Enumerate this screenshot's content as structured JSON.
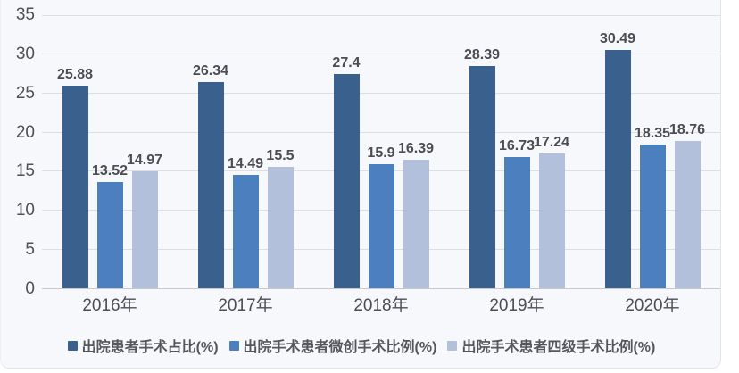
{
  "page": {
    "background": "#ffffff"
  },
  "card": {
    "background": "#f7f8fb",
    "border_color": "#e2e5ea"
  },
  "colors": {
    "grid_line": "#dcdee3",
    "axis_line": "#c6c9ce",
    "tick_text": "#4e5056",
    "value_label_text": "#4b4d53",
    "legend_text": "#54565c"
  },
  "chart_data": {
    "type": "bar",
    "title": "",
    "categories": [
      "2016年",
      "2017年",
      "2018年",
      "2019年",
      "2020年"
    ],
    "series": [
      {
        "name": "出院患者手术占比(%)",
        "color": "#3a618e",
        "values": [
          25.88,
          26.34,
          27.4,
          28.39,
          30.49
        ],
        "value_labels": [
          "25.88",
          "26.34",
          "27.4",
          "28.39",
          "30.49"
        ]
      },
      {
        "name": "出院手术患者微创手术比例(%)",
        "color": "#4c7fbd",
        "values": [
          13.52,
          14.49,
          15.9,
          16.73,
          18.35
        ],
        "value_labels": [
          "13.52",
          "14.49",
          "15.9",
          "16.73",
          "18.35"
        ]
      },
      {
        "name": "出院手术患者四级手术比例(%)",
        "color": "#b2c0db",
        "values": [
          14.97,
          15.5,
          16.39,
          17.24,
          18.76
        ],
        "value_labels": [
          "14.97",
          "15.5",
          "16.39",
          "17.24",
          "18.76"
        ]
      }
    ],
    "xlabel": "",
    "ylabel": "",
    "ylim": [
      0,
      35
    ],
    "yticks": [
      0,
      5,
      10,
      15,
      20,
      25,
      30,
      35
    ],
    "grid": true,
    "legend_position": "bottom",
    "value_labels_shown": true
  }
}
